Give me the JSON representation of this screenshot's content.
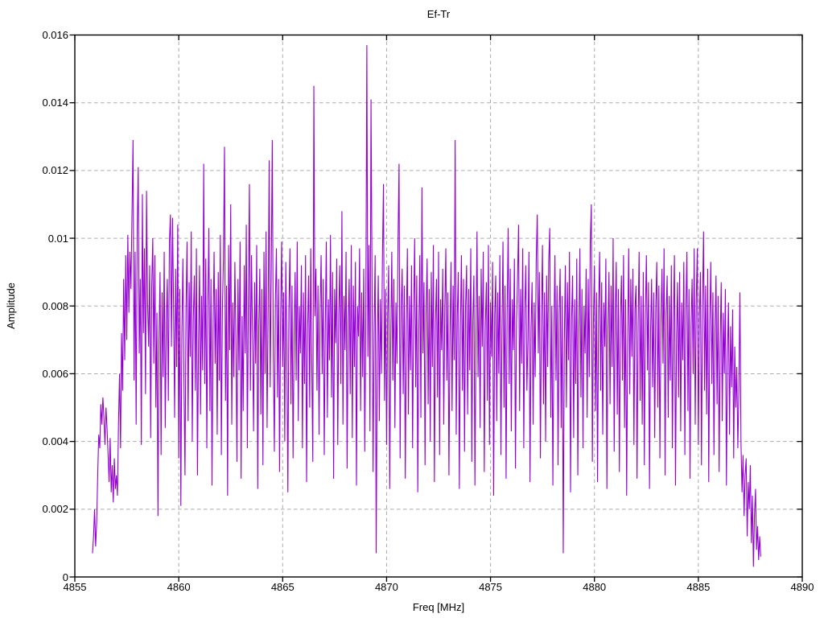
{
  "chart_data": {
    "type": "line",
    "title": "Ef-Tr",
    "xlabel": "Freq [MHz]",
    "ylabel": "Amplitude",
    "xlim": [
      4855,
      4890
    ],
    "ylim": [
      0,
      0.016
    ],
    "xtick_values": [
      4855,
      4860,
      4865,
      4870,
      4875,
      4880,
      4885,
      4890
    ],
    "xtick_labels": [
      "4855",
      "4860",
      "4865",
      "4870",
      "4875",
      "4880",
      "4885",
      "4890"
    ],
    "ytick_values": [
      0,
      0.002,
      0.004,
      0.006,
      0.008,
      0.01,
      0.012,
      0.014,
      0.016
    ],
    "ytick_labels": [
      "0",
      "0.002",
      "0.004",
      "0.006",
      "0.008",
      "0.01",
      "0.012",
      "0.014",
      "0.016"
    ],
    "grid": true,
    "legend": "none",
    "line_color": "#9400d3",
    "grid_color": "#ababab",
    "border_color": "#000000",
    "background_color": "#ffffff",
    "x_start": 4855.85,
    "x_step": 0.05,
    "values_scale": 0.0001,
    "values": [
      7,
      12,
      20,
      9,
      16,
      30,
      42,
      38,
      51,
      45,
      53,
      47,
      39,
      50,
      44,
      36,
      28,
      41,
      25,
      33,
      22,
      35,
      26,
      30,
      24,
      45,
      60,
      38,
      72,
      55,
      88,
      64,
      95,
      70,
      101,
      78,
      96,
      85,
      107,
      129,
      58,
      96,
      45,
      102,
      121,
      66,
      88,
      39,
      113,
      72,
      97,
      54,
      114,
      81,
      68,
      92,
      41,
      86,
      100,
      63,
      95,
      50,
      78,
      18,
      70,
      90,
      36,
      84,
      59,
      96,
      44,
      75,
      88,
      52,
      99,
      107,
      68,
      106,
      80,
      47,
      91,
      62,
      104,
      35,
      85,
      21,
      72,
      94,
      58,
      30,
      79,
      99,
      46,
      87,
      65,
      102,
      40,
      76,
      89,
      55,
      97,
      30,
      70,
      92,
      48,
      83,
      61,
      122,
      57,
      94,
      38,
      80,
      103,
      49,
      88,
      27,
      73,
      96,
      63,
      85,
      42,
      90,
      58,
      101,
      36,
      79,
      94,
      127,
      52,
      86,
      24,
      98,
      67,
      110,
      45,
      81,
      59,
      93,
      70,
      34,
      88,
      61,
      99,
      29,
      77,
      49,
      92,
      66,
      104,
      38,
      83,
      116,
      55,
      95,
      72,
      43,
      87,
      63,
      98,
      26,
      74,
      91,
      48,
      85,
      33,
      96,
      60,
      102,
      44,
      78,
      123,
      56,
      90,
      129,
      65,
      37,
      82,
      97,
      53,
      88,
      31,
      76,
      99,
      62,
      84,
      40,
      93,
      68,
      25,
      79,
      97,
      51,
      86,
      35,
      71,
      90,
      58,
      99,
      46,
      80,
      66,
      92,
      38,
      84,
      57,
      95,
      28,
      73,
      89,
      50,
      97,
      63,
      34,
      145,
      77,
      91,
      55,
      86,
      42,
      79,
      95,
      60,
      88,
      36,
      74,
      99,
      47,
      82,
      64,
      101,
      53,
      90,
      29,
      85,
      69,
      94,
      39,
      78,
      92,
      57,
      108,
      45,
      83,
      67,
      96,
      32,
      75,
      88,
      54,
      98,
      41,
      86,
      62,
      93,
      27,
      80,
      71,
      97,
      49,
      84,
      59,
      91,
      37,
      76,
      157,
      65,
      98,
      43,
      141,
      87,
      31,
      73,
      95,
      7,
      68,
      89,
      46,
      82,
      60,
      94,
      116,
      52,
      85,
      39,
      77,
      92,
      26,
      70,
      96,
      58,
      88,
      44,
      81,
      63,
      99,
      122,
      35,
      79,
      91,
      54,
      86,
      29,
      74,
      97,
      48,
      83,
      61,
      92,
      38,
      76,
      100,
      56,
      89,
      25,
      72,
      95,
      47,
      115,
      66,
      87,
      33,
      78,
      94,
      51,
      85,
      40,
      90,
      62,
      98,
      28,
      75,
      88,
      53,
      96,
      36,
      82,
      67,
      91,
      45,
      79,
      97,
      58,
      84,
      30,
      71,
      93,
      49,
      86,
      64,
      129,
      42,
      77,
      90,
      26,
      73,
      95,
      55,
      88,
      37,
      80,
      92,
      48,
      85,
      61,
      97,
      34,
      76,
      89,
      27,
      70,
      102,
      59,
      83,
      44,
      91,
      68,
      96,
      31,
      74,
      87,
      52,
      98,
      39,
      81,
      65,
      93,
      24,
      77,
      89,
      46,
      84,
      60,
      95,
      36,
      72,
      99,
      50,
      86,
      29,
      78,
      103,
      57,
      91,
      43,
      82,
      67,
      94,
      32,
      75,
      88,
      104,
      49,
      85,
      63,
      97,
      38,
      79,
      92,
      55,
      70,
      96,
      28,
      73,
      87,
      45,
      81,
      59,
      94,
      107,
      66,
      90,
      35,
      77,
      98,
      51,
      84,
      40,
      89,
      62,
      93,
      103,
      47,
      80,
      27,
      72,
      95,
      58,
      86,
      33,
      78,
      91,
      44,
      83,
      7,
      69,
      92,
      50,
      87,
      64,
      96,
      25,
      76,
      89,
      41,
      82,
      57,
      94,
      30,
      71,
      97,
      53,
      85,
      38,
      80,
      66,
      91,
      47,
      88,
      59,
      99,
      110,
      34,
      75,
      92,
      49,
      84,
      28,
      79,
      96,
      55,
      87,
      42,
      81,
      68,
      94,
      26,
      73,
      90,
      51,
      86,
      62,
      100,
      37,
      78,
      93,
      48,
      85,
      31,
      76,
      89,
      58,
      95,
      44,
      82,
      24,
      70,
      97,
      54,
      88,
      65,
      91,
      39,
      79,
      86,
      29,
      74,
      96,
      52,
      83,
      45,
      90,
      33,
      77,
      95,
      61,
      87,
      26,
      72,
      88,
      56,
      84,
      41,
      80,
      93,
      50,
      86,
      35,
      75,
      91,
      63,
      97,
      30,
      78,
      89,
      47,
      83,
      58,
      92,
      38,
      76,
      95,
      27,
      71,
      87,
      53,
      90,
      43,
      81,
      64,
      93,
      36,
      79,
      96,
      49,
      85,
      29,
      74,
      88,
      60,
      97,
      45,
      82,
      97,
      39,
      77,
      90,
      33,
      80,
      102,
      55,
      86,
      48,
      91,
      28,
      75,
      93,
      57,
      84,
      36,
      72,
      89,
      51,
      83,
      31,
      69,
      87,
      46,
      78,
      60,
      85,
      27,
      65,
      81,
      42,
      74,
      56,
      79,
      35,
      68,
      50,
      62,
      38,
      55,
      84,
      40,
      25,
      36,
      18,
      30,
      35,
      12,
      28,
      20,
      33,
      10,
      24,
      3,
      18,
      26,
      8,
      15,
      5,
      12,
      6
    ]
  }
}
